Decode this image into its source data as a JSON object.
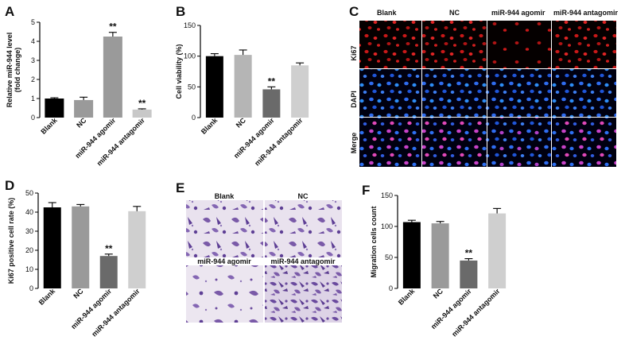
{
  "panels": {
    "A": "A",
    "B": "B",
    "C": "C",
    "D": "D",
    "E": "E",
    "F": "F"
  },
  "chart_data": [
    {
      "id": "A",
      "type": "bar",
      "ylabel": "Relative miR-944 level\n(fold change)",
      "categories": [
        "Blank",
        "NC",
        "miR-944 agomir",
        "miR-944 antagomir"
      ],
      "values": [
        1.0,
        0.92,
        4.25,
        0.42
      ],
      "errors": [
        0.04,
        0.15,
        0.22,
        0.04
      ],
      "significance": [
        "",
        "",
        "**",
        "**"
      ],
      "colors": [
        "#000000",
        "#9a9a9a",
        "#9a9a9a",
        "#c8c8c8"
      ],
      "ylim": [
        0,
        5
      ],
      "yticks": [
        0,
        1,
        2,
        3,
        4,
        5
      ]
    },
    {
      "id": "B",
      "type": "bar",
      "ylabel": "Cell viability (%)",
      "categories": [
        "Blank",
        "NC",
        "miR-944 agomir",
        "miR-944 antagomir"
      ],
      "values": [
        100,
        102,
        46,
        85
      ],
      "errors": [
        4,
        8,
        4,
        4
      ],
      "significance": [
        "",
        "",
        "**",
        ""
      ],
      "colors": [
        "#000000",
        "#b5b5b5",
        "#6a6a6a",
        "#cfcfcf"
      ],
      "ylim": [
        0,
        150
      ],
      "yticks": [
        0,
        50,
        100,
        150
      ]
    },
    {
      "id": "D",
      "type": "bar",
      "ylabel": "Ki67 positive cell rate (%)",
      "categories": [
        "Blank",
        "NC",
        "miR-944 agomir",
        "miR-944 antagomir"
      ],
      "values": [
        42.5,
        43,
        17,
        40.5
      ],
      "errors": [
        2.5,
        1,
        1,
        2.5
      ],
      "significance": [
        "",
        "",
        "**",
        ""
      ],
      "colors": [
        "#000000",
        "#9a9a9a",
        "#6a6a6a",
        "#cfcfcf"
      ],
      "ylim": [
        0,
        50
      ],
      "yticks": [
        0,
        10,
        20,
        30,
        40,
        50
      ]
    },
    {
      "id": "F",
      "type": "bar",
      "ylabel": "Migration cells count",
      "categories": [
        "Blank",
        "NC",
        "miR-944 agomir",
        "miR-944 antagomir"
      ],
      "values": [
        107,
        105,
        45,
        121
      ],
      "errors": [
        3,
        3,
        3,
        8
      ],
      "significance": [
        "",
        "",
        "**",
        ""
      ],
      "colors": [
        "#000000",
        "#9a9a9a",
        "#6a6a6a",
        "#cfcfcf"
      ],
      "ylim": [
        0,
        150
      ],
      "yticks": [
        0,
        50,
        100,
        150
      ]
    }
  ],
  "panel_c": {
    "columns": [
      "Blank",
      "NC",
      "miR-944 agomir",
      "miR-944 antagomir"
    ],
    "rows": [
      "Ki67",
      "DAPI",
      "Merge"
    ]
  },
  "panel_e": {
    "labels": [
      "Blank",
      "NC",
      "miR-944 agomir",
      "miR-944 antagomir"
    ]
  }
}
